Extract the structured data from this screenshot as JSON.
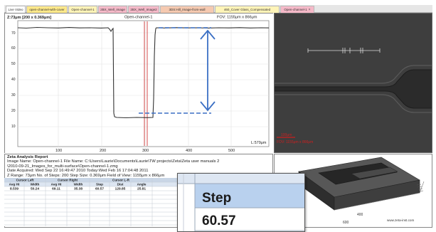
{
  "tabs": [
    {
      "label": "Live Video",
      "color": "#ffffff"
    },
    {
      "label": "open-channel-with-cover",
      "color": "#ffe98a"
    },
    {
      "label": "Open-channel-1",
      "color": "#fff4b8"
    },
    {
      "label": "2BX_Well_Image",
      "color": "#f5b9c8"
    },
    {
      "label": "2BX_Well_Image2",
      "color": "#f5b9c8"
    },
    {
      "label": "3DS:Hill_Image-from-wall",
      "color": "#f5c9b0"
    },
    {
      "label": "460_Cover Glass_Compensated",
      "color": "#fff4b8"
    },
    {
      "label": "Open-channel-1",
      "color": "#f5b9c8"
    }
  ],
  "tab_close": "×",
  "plot": {
    "top_left": "Z:73μm [200 x 0.369μm]",
    "title": "Open-channel-1",
    "fov": "FOV: 1155μm x 866μm",
    "length": "L:579μm",
    "y_ticks": [
      "70",
      "60",
      "50",
      "40",
      "30",
      "20",
      "10"
    ],
    "x_ticks": [
      "100",
      "200",
      "300",
      "400",
      "500"
    ],
    "colors": {
      "profile": "#333333",
      "arrow": "#3a6fc4",
      "cursor": "#cc2222"
    }
  },
  "report": {
    "title": "Zeta Analysis Report",
    "line1": "Image Name:  Open-channel-1      File Name:     C:\\Users\\Laurie\\Documents\\Laurie\\TW projects\\Zeta\\Zeta user manuals 2",
    "line2": "\\2010-09-21_Images_for_multi-surface\\Open-channel-1.zmg",
    "line3": "Date Acquired:          Wed Sep 22 16:49:47 2010   Today:Wed Feb 16 17:04:48 2011",
    "line4": "Z Range:    73μm   No. of Steps:  200    Step Size:       0.369μm      Field of View: 1155μm x 866μm",
    "groups": [
      "Cursor Left",
      "Cursor Right",
      "Cursor L-R"
    ],
    "headers": [
      "Avg Ht",
      "Width",
      "Avg Ht",
      "Width",
      "Step",
      "Dist",
      "Angle"
    ],
    "values": [
      "8.539",
      "50.24",
      "69.11",
      "35.38",
      "60.57",
      "129.85",
      "25.81"
    ]
  },
  "micro": {
    "scale_label": "100μm",
    "fov_label": "FOV: 1155μm x 866μm"
  },
  "view3d": {
    "tick_400": "400",
    "tick_600": "600",
    "url": "www.zeta-inst.com"
  },
  "zoom": {
    "header": "Step",
    "value": "60.57"
  }
}
